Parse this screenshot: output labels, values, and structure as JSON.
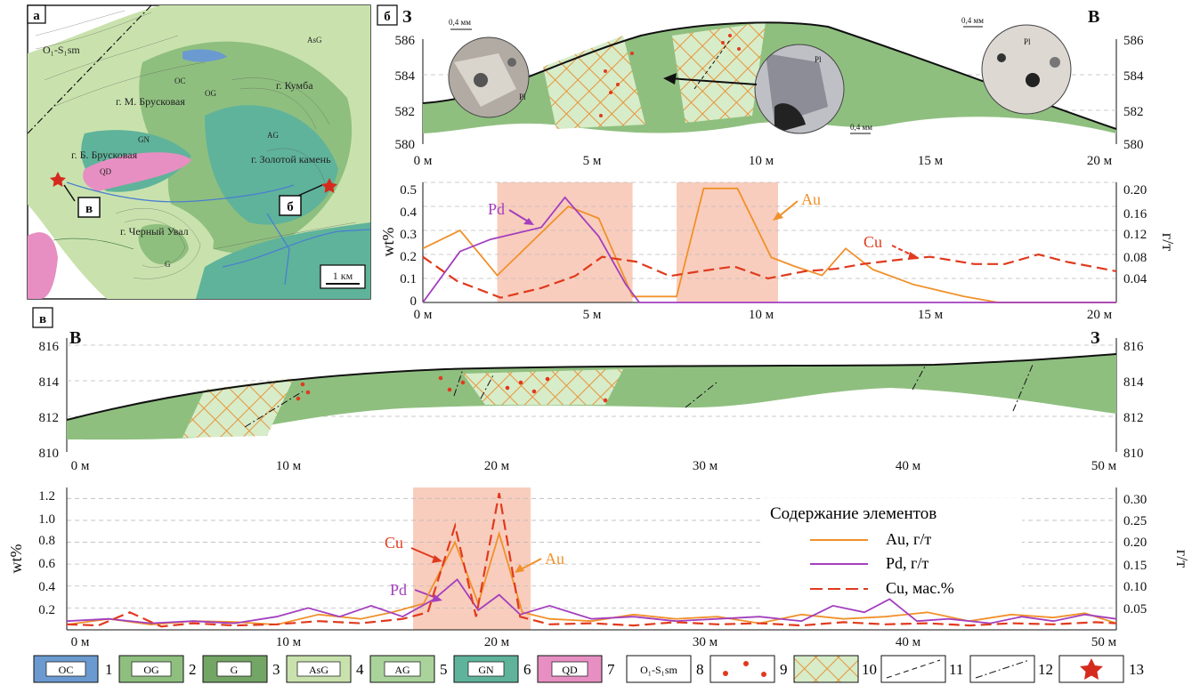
{
  "colors": {
    "OC": "#6b9ad0",
    "OG": "#8fbf7f",
    "G": "#73a565",
    "AsG": "#c9e2ad",
    "AG": "#a9d39a",
    "GN": "#5fb39a",
    "QD": "#e78fc2",
    "rock": "#7fb872",
    "zone": "#f9cdbd",
    "au": "#f0912b",
    "pd": "#a33fbe",
    "cu": "#e03a1e",
    "star": "#d52b1e"
  },
  "panel_a": {
    "tag": "а",
    "labels": {
      "m_bruskovaya": "г. М. Брусковая",
      "kumba": "г. Кумба",
      "b_bruskovaya": "г. Б. Брусковая",
      "zolotoy": "г. Золотой камень",
      "cherny": "г. Черный Увал"
    },
    "codes": {
      "os": "O₁-S₁sm",
      "asg": "AsG",
      "og": "OG",
      "oc": "OC",
      "qd": "QD",
      "gn": "GN",
      "ag": "AG",
      "g": "G"
    },
    "callout_v": "в",
    "callout_b": "б",
    "scale": "1 км"
  },
  "panel_b": {
    "tag": "б",
    "dir_left": "З",
    "dir_right": "В",
    "scale_label": "0,4 мм",
    "mineral_pl": "Pl",
    "y_ticks": [
      "586",
      "584",
      "582",
      "580"
    ],
    "x_ticks": [
      "0 м",
      "5 м",
      "10 м",
      "15 м",
      "20 м"
    ]
  },
  "chart_b": {
    "type": "line",
    "ylabel": "wt%",
    "y2label": "г/т",
    "y_ticks": [
      "0.5",
      "0.4",
      "0.3",
      "0.2",
      "0.1",
      "0"
    ],
    "y2_ticks": [
      "0.20",
      "0.16",
      "0.12",
      "0.08",
      "0.04"
    ],
    "x_ticks": [
      "0 м",
      "5 м",
      "10 м",
      "15 м",
      "20 м"
    ],
    "annot": {
      "pd": "Pd",
      "au": "Au",
      "cu": "Cu"
    }
  },
  "panel_v": {
    "tag": "в",
    "dir_left": "В",
    "dir_right": "З",
    "y_ticks": [
      "816",
      "814",
      "812",
      "810"
    ],
    "x_ticks": [
      "0 м",
      "10 м",
      "20 м",
      "30 м",
      "40 м",
      "50 м"
    ]
  },
  "chart_v": {
    "type": "line",
    "ylabel": "wt%",
    "y2label": "г/т",
    "y_ticks": [
      "1.2",
      "1.0",
      "0.8",
      "0.6",
      "0.4",
      "0.2"
    ],
    "y2_ticks": [
      "0.30",
      "0.25",
      "0.20",
      "0.15",
      "0.10",
      "0.05"
    ],
    "x_ticks": [
      "0 м",
      "10 м",
      "20 м",
      "30 м",
      "40 м",
      "50 м"
    ],
    "annot": {
      "cu": "Cu",
      "au": "Au",
      "pd": "Pd"
    },
    "legend": {
      "title": "Содержание элементов",
      "au": "Au, г/т",
      "pd": "Pd, г/т",
      "cu": "Cu, мас.%"
    }
  },
  "legend_bar": [
    {
      "code": "OC",
      "num": "1"
    },
    {
      "code": "OG",
      "num": "2"
    },
    {
      "code": "G",
      "num": "3"
    },
    {
      "code": "AsG",
      "num": "4"
    },
    {
      "code": "AG",
      "num": "5"
    },
    {
      "code": "GN",
      "num": "6"
    },
    {
      "code": "QD",
      "num": "7"
    },
    {
      "code": "O₁-S₁sm",
      "num": "8"
    },
    {
      "code": "",
      "num": "9"
    },
    {
      "code": "",
      "num": "10"
    },
    {
      "code": "",
      "num": "11"
    },
    {
      "code": "",
      "num": "12"
    },
    {
      "code": "",
      "num": "13"
    }
  ],
  "chart_data": [
    {
      "type": "line",
      "title": "",
      "xlabel": "",
      "ylabel": "wt%",
      "x_unit": "м",
      "xlim": [
        0,
        20.5
      ],
      "ylim": [
        0,
        0.5
      ],
      "y2lim": [
        0,
        0.2
      ],
      "highlight_ranges": [
        [
          2.2,
          6.2
        ],
        [
          7.5,
          10.5
        ]
      ],
      "series": [
        {
          "name": "Au",
          "axis": "right",
          "x": [
            0,
            1.1,
            2.2,
            4.3,
            5.2,
            6.2,
            7.5,
            8.3,
            9.3,
            10.3,
            11.0,
            11.8,
            12.5,
            13.3,
            14.5,
            16.0,
            17.0,
            20.5
          ],
          "y": [
            0.09,
            0.12,
            0.045,
            0.16,
            0.14,
            0.01,
            0.01,
            0.19,
            0.19,
            0.075,
            0.06,
            0.045,
            0.09,
            0.055,
            0.03,
            0.01,
            0.0,
            0.0
          ]
        },
        {
          "name": "Pd",
          "axis": "right",
          "x": [
            0,
            1.1,
            2.0,
            3.5,
            4.2,
            5.2,
            6.0,
            6.4,
            8.0,
            10.0,
            14.0,
            18.0,
            20.5
          ],
          "y": [
            0.0,
            0.085,
            0.105,
            0.125,
            0.175,
            0.11,
            0.03,
            0.0,
            0.0,
            0.0,
            0.0,
            0.0,
            0.0
          ]
        },
        {
          "name": "Cu",
          "axis": "left",
          "x": [
            0,
            1.0,
            2.3,
            3.5,
            4.5,
            5.3,
            6.3,
            7.3,
            8.2,
            9.2,
            10.2,
            11.3,
            12.2,
            13.0,
            14.2,
            15.0,
            16.3,
            17.2,
            18.2,
            19.0,
            20.5
          ],
          "y": [
            0.19,
            0.09,
            0.02,
            0.06,
            0.11,
            0.19,
            0.17,
            0.11,
            0.13,
            0.15,
            0.1,
            0.13,
            0.14,
            0.16,
            0.18,
            0.19,
            0.16,
            0.16,
            0.2,
            0.17,
            0.13
          ]
        }
      ]
    },
    {
      "type": "line",
      "title": "",
      "xlabel": "",
      "ylabel": "wt%",
      "x_unit": "м",
      "xlim": [
        0,
        50
      ],
      "ylim": [
        0,
        1.3
      ],
      "y2lim": [
        0,
        0.325
      ],
      "highlight_ranges": [
        [
          16.5,
          22.1
        ]
      ],
      "series": [
        {
          "name": "Au",
          "axis": "right",
          "x": [
            0,
            2,
            4,
            6,
            8,
            10,
            12,
            14,
            15.5,
            17,
            18.5,
            19.6,
            20.6,
            21.7,
            23,
            25,
            27,
            29,
            31,
            33,
            35,
            37,
            39,
            41,
            43,
            45,
            47,
            48.5,
            50
          ],
          "y": [
            0.012,
            0.025,
            0.012,
            0.02,
            0.018,
            0.012,
            0.035,
            0.025,
            0.04,
            0.06,
            0.2,
            0.06,
            0.22,
            0.04,
            0.025,
            0.02,
            0.035,
            0.025,
            0.03,
            0.015,
            0.035,
            0.025,
            0.03,
            0.04,
            0.02,
            0.035,
            0.028,
            0.038,
            0.015
          ]
        },
        {
          "name": "Pd",
          "axis": "right",
          "x": [
            0,
            2,
            4,
            6,
            8,
            10,
            11.5,
            13,
            14.5,
            16,
            17.5,
            18.6,
            19.6,
            20.6,
            21.6,
            23,
            25,
            27,
            29,
            31,
            33,
            35,
            36.5,
            38,
            39.2,
            40.5,
            42,
            44,
            45.5,
            47,
            48.5,
            50
          ],
          "y": [
            0.02,
            0.025,
            0.015,
            0.02,
            0.015,
            0.03,
            0.05,
            0.03,
            0.055,
            0.03,
            0.07,
            0.115,
            0.045,
            0.08,
            0.035,
            0.055,
            0.025,
            0.03,
            0.02,
            0.025,
            0.03,
            0.02,
            0.055,
            0.04,
            0.07,
            0.02,
            0.025,
            0.015,
            0.03,
            0.02,
            0.035,
            0.025
          ]
        },
        {
          "name": "Cu",
          "axis": "left",
          "x": [
            0,
            1.5,
            3,
            4.5,
            6,
            8,
            10,
            12,
            14,
            16,
            17.2,
            18.5,
            19.5,
            20.6,
            21.6,
            23,
            25,
            27,
            29,
            31,
            33,
            35,
            37,
            39,
            41,
            43,
            45,
            47,
            49,
            50
          ],
          "y": [
            0.05,
            0.04,
            0.16,
            0.03,
            0.06,
            0.04,
            0.05,
            0.08,
            0.06,
            0.1,
            0.16,
            0.95,
            0.12,
            1.25,
            0.12,
            0.05,
            0.06,
            0.04,
            0.07,
            0.05,
            0.06,
            0.04,
            0.07,
            0.05,
            0.06,
            0.04,
            0.06,
            0.05,
            0.07,
            0.06
          ]
        }
      ]
    }
  ]
}
